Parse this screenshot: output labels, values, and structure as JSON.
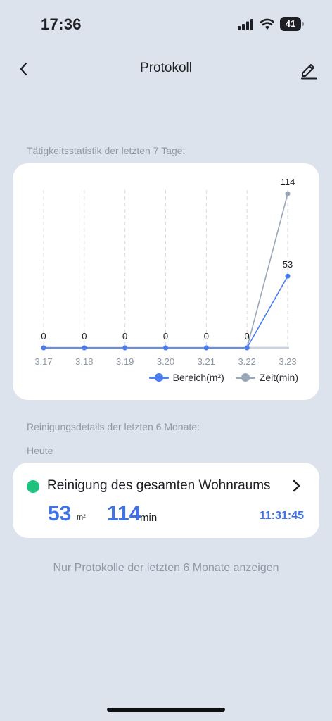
{
  "status_bar": {
    "time": "17:36",
    "battery": "41",
    "icons": [
      "signal-icon",
      "wifi-icon",
      "battery-icon"
    ]
  },
  "nav": {
    "title": "Protokoll",
    "back_icon": "chevron-left-icon",
    "edit_icon": "edit-pencil-icon"
  },
  "stats_label": "Tätigkeitsstatistik der letzten 7 Tage:",
  "chart_data": {
    "type": "line",
    "categories": [
      "3.17",
      "3.18",
      "3.19",
      "3.20",
      "3.21",
      "3.22",
      "3.23"
    ],
    "series": [
      {
        "name": "Bereich(m²)",
        "values": [
          0,
          0,
          0,
          0,
          0,
          0,
          53
        ],
        "color": "#4a7ef0",
        "show_labels": true
      },
      {
        "name": "Zeit(min)",
        "values": [
          0,
          0,
          0,
          0,
          0,
          0,
          114
        ],
        "color": "#9aa7b9",
        "show_labels": true
      }
    ],
    "ylim": [
      0,
      125
    ],
    "grid": "vertical-dashed",
    "legend_position": "bottom-right"
  },
  "details_label": "Reinigungsdetails der letzten 6 Monate:",
  "day_label": "Heute",
  "record": {
    "title": "Reinigung des gesamten Wohnraums",
    "area": "53",
    "area_unit": "m²",
    "duration": "114",
    "duration_unit": "min",
    "time": "11:31:45",
    "status_color": "#1ec27d",
    "value_color": "#3f73e6",
    "chevron_icon": "chevron-right-icon"
  },
  "footer": "Nur Protokolle der letzten 6 Monate anzeigen"
}
